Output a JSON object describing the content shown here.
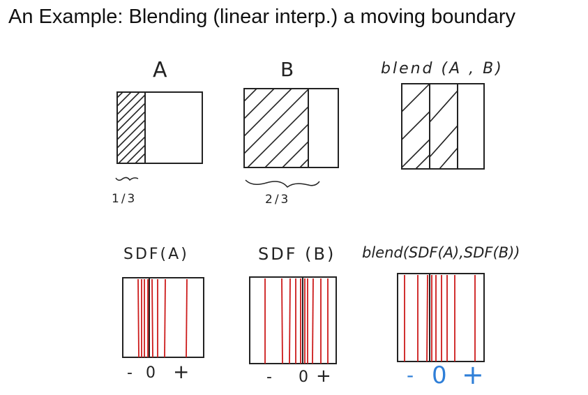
{
  "title": "An Example: Blending (linear interp.) a moving boundary",
  "top_row": {
    "labels": [
      "A",
      "B",
      "blend (A , B)"
    ],
    "fractions": [
      "1/3",
      "2/3"
    ]
  },
  "bottom_row": {
    "labels": [
      "SDF(A)",
      "SDF (B)",
      "blend(SDF(A),SDF(B))"
    ],
    "signs": [
      {
        "minus": "-",
        "zero": "0",
        "plus": "+"
      },
      {
        "minus": "-",
        "zero": "0",
        "plus": "+"
      },
      {
        "minus": "-",
        "zero": "0",
        "plus": "+"
      }
    ]
  },
  "colors": {
    "ink": "#222222",
    "red_lines": "#cc1a1a",
    "blue_signs": "#2f7fd8"
  }
}
